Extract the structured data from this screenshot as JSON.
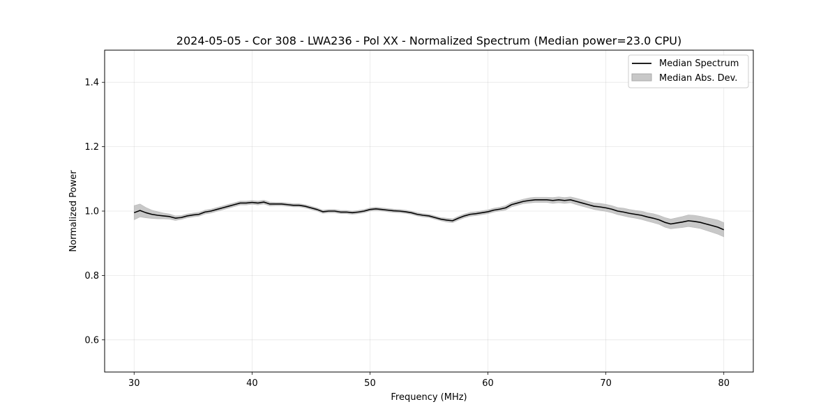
{
  "chart_data": {
    "type": "line",
    "title": "2024-05-05 - Cor 308 - LWA236 - Pol XX - Normalized Spectrum (Median power=23.0 CPU)",
    "xlabel": "Frequency (MHz)",
    "ylabel": "Normalized Power",
    "xlim": [
      27.5,
      82.5
    ],
    "ylim": [
      0.5,
      1.5
    ],
    "xticks": [
      30,
      40,
      50,
      60,
      70,
      80
    ],
    "xtick_labels": [
      "30",
      "40",
      "50",
      "60",
      "70",
      "80"
    ],
    "yticks": [
      0.6,
      0.8,
      1.0,
      1.2,
      1.4
    ],
    "ytick_labels": [
      "0.6",
      "0.8",
      "1.0",
      "1.2",
      "1.4"
    ],
    "grid": true,
    "legend_position": "top-right",
    "legend": [
      "Median Spectrum",
      "Median Abs. Dev."
    ],
    "series": [
      {
        "name": "Median Spectrum",
        "color": "#000000",
        "x": [
          30,
          30.5,
          31,
          31.5,
          32,
          32.5,
          33,
          33.5,
          34,
          34.5,
          35,
          35.5,
          36,
          36.5,
          37,
          37.5,
          38,
          38.5,
          39,
          39.5,
          40,
          40.5,
          41,
          41.5,
          42,
          42.5,
          43,
          43.5,
          44,
          44.5,
          45,
          45.5,
          46,
          46.5,
          47,
          47.5,
          48,
          48.5,
          49,
          49.5,
          50,
          50.5,
          51,
          51.5,
          52,
          52.5,
          53,
          53.5,
          54,
          54.5,
          55,
          55.5,
          56,
          56.5,
          57,
          57.5,
          58,
          58.5,
          59,
          59.5,
          60,
          60.5,
          61,
          61.5,
          62,
          62.5,
          63,
          63.5,
          64,
          64.5,
          65,
          65.5,
          66,
          66.5,
          67,
          67.5,
          68,
          68.5,
          69,
          69.5,
          70,
          70.5,
          71,
          71.5,
          72,
          72.5,
          73,
          73.5,
          74,
          74.5,
          75,
          75.5,
          76,
          76.5,
          77,
          77.5,
          78,
          78.5,
          79,
          79.5,
          80
        ],
        "y": [
          0.995,
          1.002,
          0.995,
          0.99,
          0.987,
          0.985,
          0.983,
          0.978,
          0.98,
          0.985,
          0.988,
          0.99,
          0.997,
          1.0,
          1.005,
          1.01,
          1.015,
          1.02,
          1.025,
          1.025,
          1.027,
          1.025,
          1.028,
          1.022,
          1.022,
          1.022,
          1.02,
          1.018,
          1.018,
          1.015,
          1.01,
          1.005,
          0.998,
          1.0,
          1.0,
          0.997,
          0.997,
          0.995,
          0.997,
          1.0,
          1.005,
          1.007,
          1.005,
          1.003,
          1.001,
          1.0,
          0.998,
          0.995,
          0.99,
          0.987,
          0.985,
          0.98,
          0.975,
          0.972,
          0.97,
          0.978,
          0.985,
          0.99,
          0.992,
          0.995,
          0.998,
          1.003,
          1.006,
          1.01,
          1.02,
          1.025,
          1.03,
          1.033,
          1.035,
          1.035,
          1.035,
          1.033,
          1.035,
          1.033,
          1.035,
          1.03,
          1.025,
          1.02,
          1.015,
          1.013,
          1.01,
          1.006,
          1.0,
          0.997,
          0.993,
          0.99,
          0.987,
          0.982,
          0.978,
          0.973,
          0.965,
          0.96,
          0.963,
          0.966,
          0.97,
          0.968,
          0.965,
          0.96,
          0.955,
          0.95,
          0.942
        ]
      },
      {
        "name": "Median Abs. Dev.",
        "color": "#c8c8c8",
        "x": [
          30,
          30.5,
          31,
          31.5,
          32,
          32.5,
          33,
          33.5,
          34,
          34.5,
          35,
          35.5,
          36,
          36.5,
          37,
          37.5,
          38,
          38.5,
          39,
          39.5,
          40,
          40.5,
          41,
          41.5,
          42,
          42.5,
          43,
          43.5,
          44,
          44.5,
          45,
          45.5,
          46,
          46.5,
          47,
          47.5,
          48,
          48.5,
          49,
          49.5,
          50,
          50.5,
          51,
          51.5,
          52,
          52.5,
          53,
          53.5,
          54,
          54.5,
          55,
          55.5,
          56,
          56.5,
          57,
          57.5,
          58,
          58.5,
          59,
          59.5,
          60,
          60.5,
          61,
          61.5,
          62,
          62.5,
          63,
          63.5,
          64,
          64.5,
          65,
          65.5,
          66,
          66.5,
          67,
          67.5,
          68,
          68.5,
          69,
          69.5,
          70,
          70.5,
          71,
          71.5,
          72,
          72.5,
          73,
          73.5,
          74,
          74.5,
          75,
          75.5,
          76,
          76.5,
          77,
          77.5,
          78,
          78.5,
          79,
          79.5,
          80
        ],
        "dev": [
          0.022,
          0.02,
          0.016,
          0.013,
          0.011,
          0.009,
          0.008,
          0.007,
          0.006,
          0.006,
          0.006,
          0.006,
          0.006,
          0.006,
          0.006,
          0.006,
          0.006,
          0.006,
          0.006,
          0.006,
          0.006,
          0.006,
          0.006,
          0.006,
          0.005,
          0.005,
          0.005,
          0.005,
          0.005,
          0.005,
          0.005,
          0.005,
          0.005,
          0.005,
          0.005,
          0.005,
          0.005,
          0.005,
          0.005,
          0.005,
          0.005,
          0.005,
          0.005,
          0.005,
          0.005,
          0.005,
          0.005,
          0.005,
          0.005,
          0.005,
          0.005,
          0.005,
          0.005,
          0.006,
          0.006,
          0.006,
          0.006,
          0.006,
          0.006,
          0.006,
          0.006,
          0.006,
          0.006,
          0.007,
          0.007,
          0.007,
          0.007,
          0.008,
          0.008,
          0.008,
          0.008,
          0.009,
          0.009,
          0.009,
          0.009,
          0.01,
          0.01,
          0.01,
          0.01,
          0.011,
          0.011,
          0.011,
          0.011,
          0.012,
          0.012,
          0.012,
          0.013,
          0.013,
          0.014,
          0.014,
          0.015,
          0.015,
          0.016,
          0.017,
          0.018,
          0.019,
          0.019,
          0.02,
          0.021,
          0.022,
          0.022
        ]
      }
    ]
  }
}
